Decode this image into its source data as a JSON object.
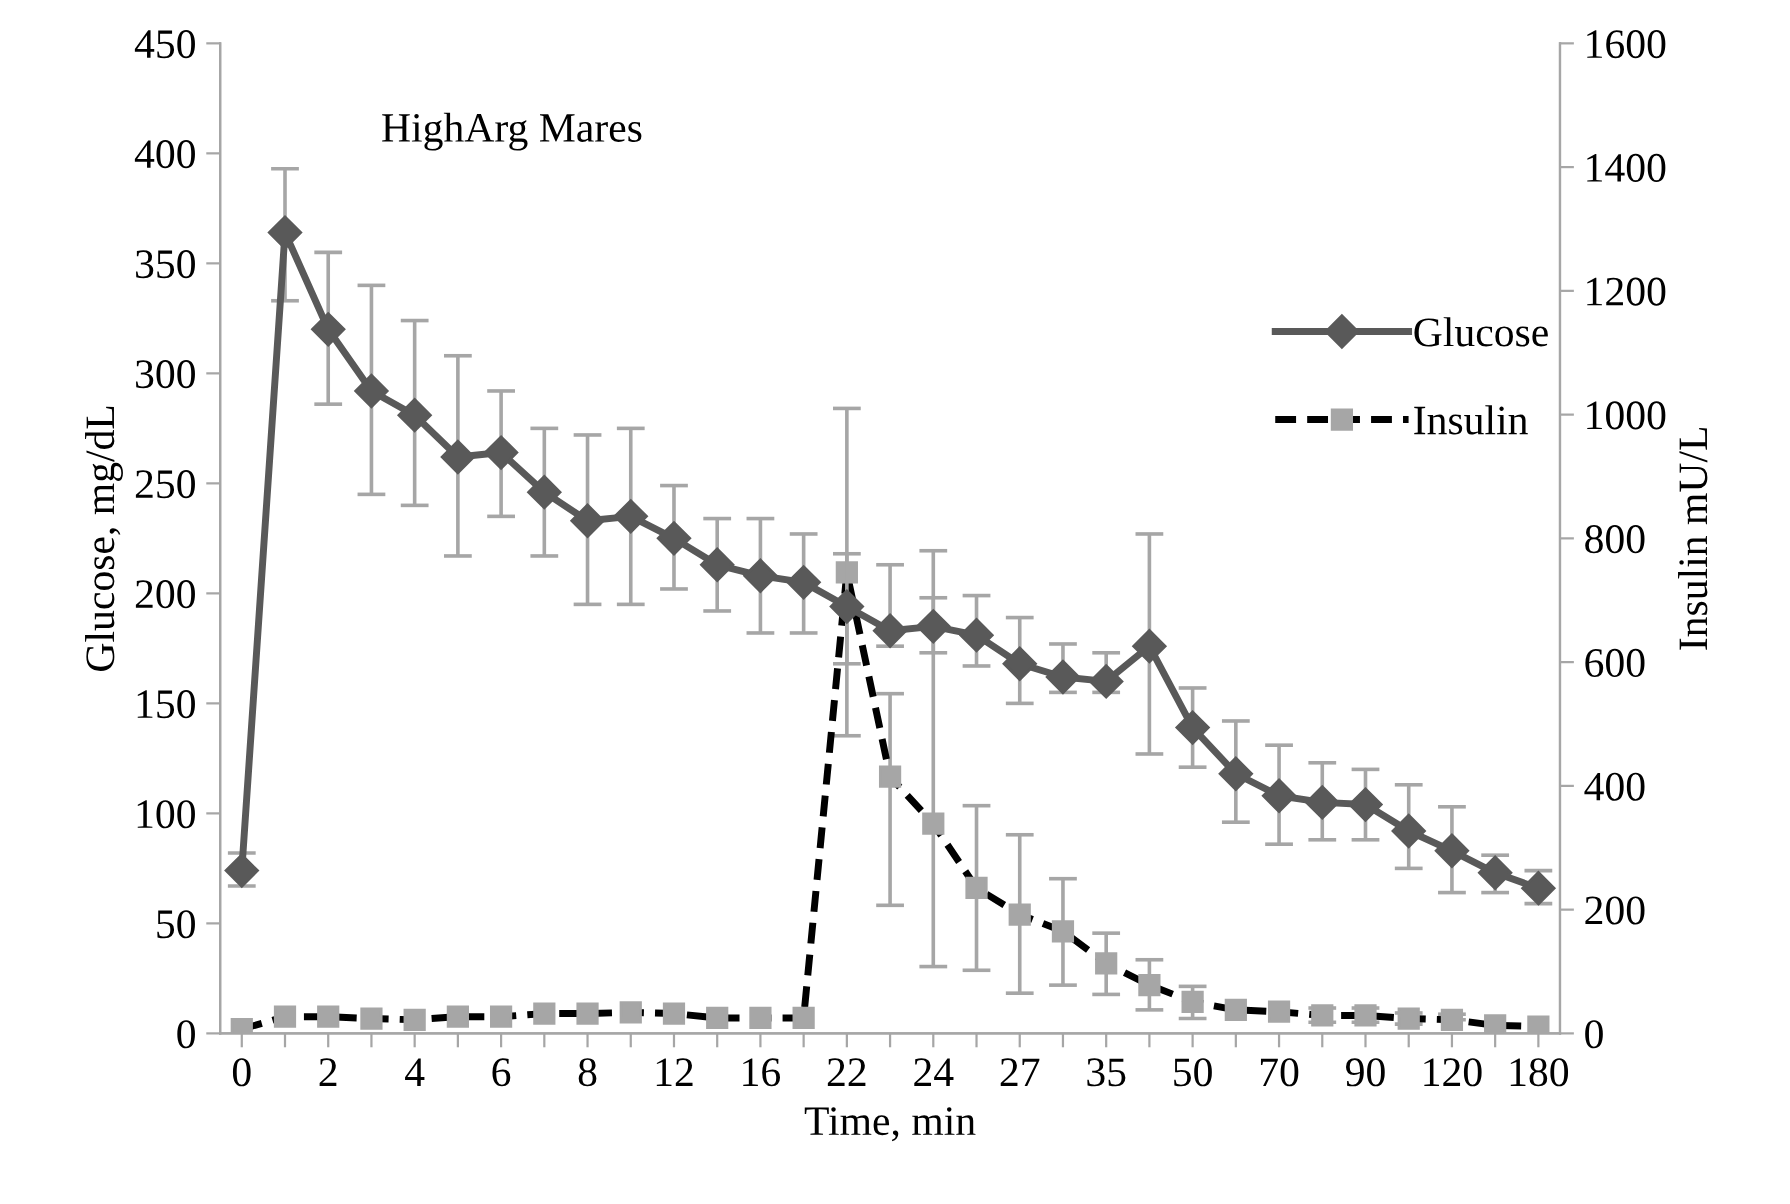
{
  "chart_data": {
    "type": "line",
    "title": "HighArg Mares",
    "xlabel": "Time, min",
    "ylabel": "Glucose, mg/dL",
    "y2label": "Insulin mU/L",
    "categories": [
      "0",
      null,
      "2",
      null,
      "4",
      null,
      "6",
      null,
      "8",
      null,
      "12",
      null,
      "16",
      null,
      "22",
      null,
      "24",
      null,
      "27",
      null,
      "35",
      null,
      "50",
      null,
      "70",
      null,
      "90",
      null,
      "120",
      null,
      "180"
    ],
    "series": [
      {
        "name": "Glucose",
        "color": "#595959",
        "marker": "diamond",
        "line_style": "solid",
        "values": [
          74,
          364,
          320,
          292,
          281,
          262,
          264,
          246,
          233,
          235,
          225,
          213,
          208,
          205,
          194,
          183,
          185,
          181,
          168,
          162,
          160,
          176,
          139,
          118,
          108,
          105,
          104,
          92,
          83,
          73,
          66
        ],
        "errors": [
          [
            67,
            82
          ],
          [
            333,
            393
          ],
          [
            286,
            355
          ],
          [
            245,
            340
          ],
          [
            240,
            324
          ],
          [
            217,
            308
          ],
          [
            235,
            292
          ],
          [
            217,
            275
          ],
          [
            195,
            272
          ],
          [
            195,
            275
          ],
          [
            202,
            249
          ],
          [
            192,
            234
          ],
          [
            182,
            234
          ],
          [
            182,
            227
          ],
          [
            168,
            218
          ],
          [
            176,
            213
          ],
          [
            173,
            198
          ],
          [
            167,
            199
          ],
          [
            150,
            189
          ],
          [
            155,
            177
          ],
          [
            155,
            173
          ],
          [
            127,
            227
          ],
          [
            121,
            157
          ],
          [
            96,
            142
          ],
          [
            86,
            131
          ],
          [
            88,
            123
          ],
          [
            88,
            120
          ],
          [
            75,
            113
          ],
          [
            64,
            103
          ],
          [
            64,
            81
          ],
          [
            59,
            74
          ]
        ]
      },
      {
        "name": "Insulin",
        "color": "#000000",
        "marker": "square",
        "line_style": "dashed",
        "axis": "y2",
        "values": [
          7,
          27,
          27,
          24,
          22,
          27,
          27,
          32,
          32,
          34,
          32,
          25,
          25,
          25,
          745,
          415,
          339,
          235,
          192,
          165,
          113,
          78,
          51,
          38,
          35,
          29,
          29,
          24,
          22,
          13,
          11
        ],
        "errors": [
          null,
          null,
          null,
          null,
          null,
          null,
          null,
          null,
          null,
          null,
          null,
          null,
          null,
          null,
          [
            481,
            1010
          ],
          [
            207,
            549
          ],
          [
            108,
            780
          ],
          [
            102,
            368
          ],
          [
            65,
            321
          ],
          [
            78,
            250
          ],
          [
            63,
            162
          ],
          [
            38,
            119
          ],
          [
            24,
            76
          ],
          null,
          null,
          [
            18,
            41
          ],
          [
            18,
            41
          ],
          [
            15,
            33
          ],
          [
            22,
            31
          ],
          null,
          null
        ]
      }
    ],
    "ylim": [
      0,
      450
    ],
    "yticks": [
      0,
      50,
      100,
      150,
      200,
      250,
      300,
      350,
      400,
      450
    ],
    "y2lim": [
      0,
      1600
    ],
    "y2ticks": [
      0,
      200,
      400,
      600,
      800,
      1000,
      1200,
      1400,
      1600
    ],
    "legend": "right",
    "grid": false
  }
}
